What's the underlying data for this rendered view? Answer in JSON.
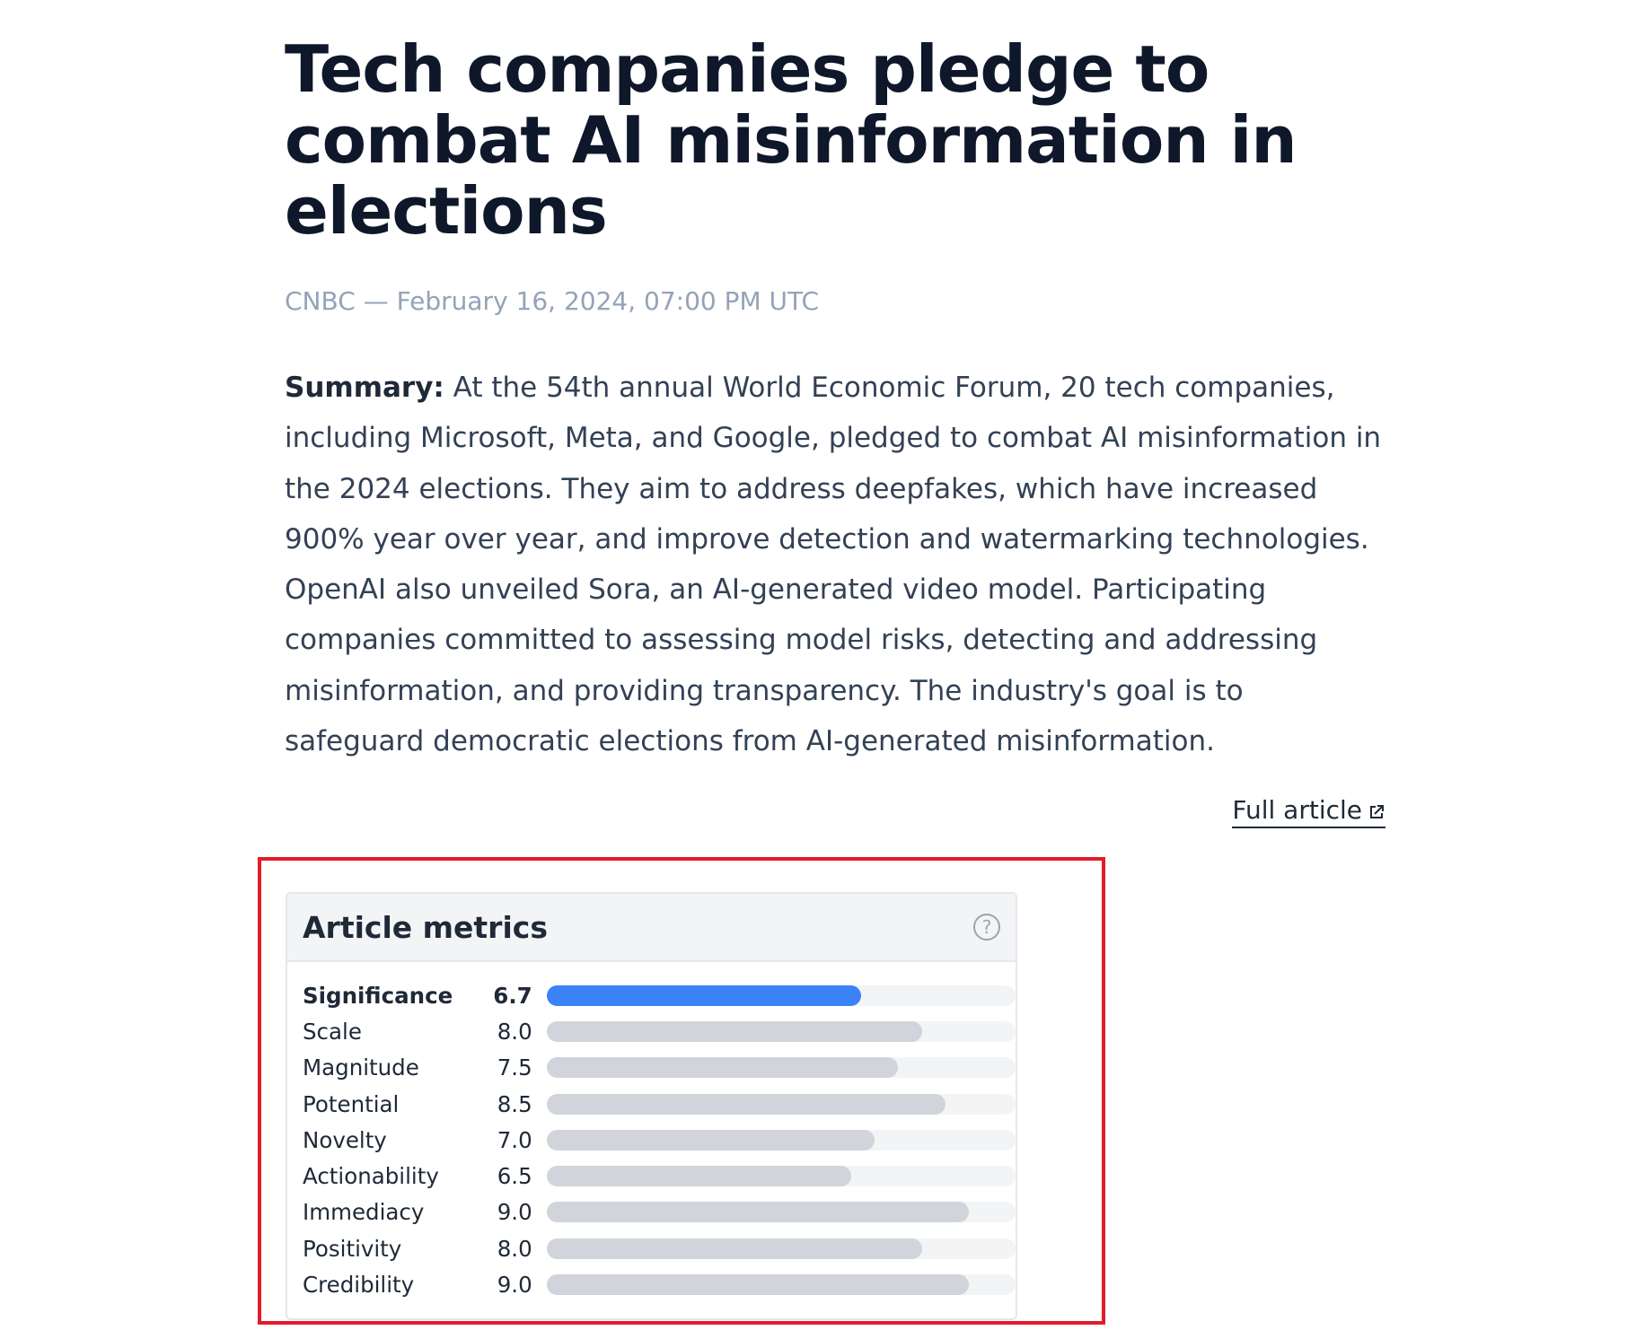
{
  "article": {
    "title": "Tech companies pledge to combat AI misinformation in elections",
    "meta": "CNBC — February 16, 2024, 07:00 PM UTC",
    "summary_label": "Summary:",
    "summary_text": " At the 54th annual World Economic Forum, 20 tech companies, including Microsoft, Meta, and Google, pledged to combat AI misinformation in the 2024 elections. They aim to address deepfakes, which have increased 900% year over year, and improve detection and watermarking technologies. OpenAI also unveiled Sora, an AI-generated video model. Participating companies committed to assessing model risks, detecting and addressing misinformation, and providing transparency. The industry's goal is to safeguard democratic elections from AI-generated misinformation.",
    "full_article_label": "Full article",
    "full_article_icon": "external-link-icon"
  },
  "metrics": {
    "title": "Article metrics",
    "help_icon": "question-circle-icon",
    "scale_max": 10,
    "highlight_color": "#3b82f6",
    "bar_color": "#d1d5db",
    "items": [
      {
        "label": "Significance",
        "value": "6.7",
        "highlight": true
      },
      {
        "label": "Scale",
        "value": "8.0"
      },
      {
        "label": "Magnitude",
        "value": "7.5"
      },
      {
        "label": "Potential",
        "value": "8.5"
      },
      {
        "label": "Novelty",
        "value": "7.0"
      },
      {
        "label": "Actionability",
        "value": "6.5"
      },
      {
        "label": "Immediacy",
        "value": "9.0"
      },
      {
        "label": "Positivity",
        "value": "8.0"
      },
      {
        "label": "Credibility",
        "value": "9.0"
      }
    ]
  }
}
